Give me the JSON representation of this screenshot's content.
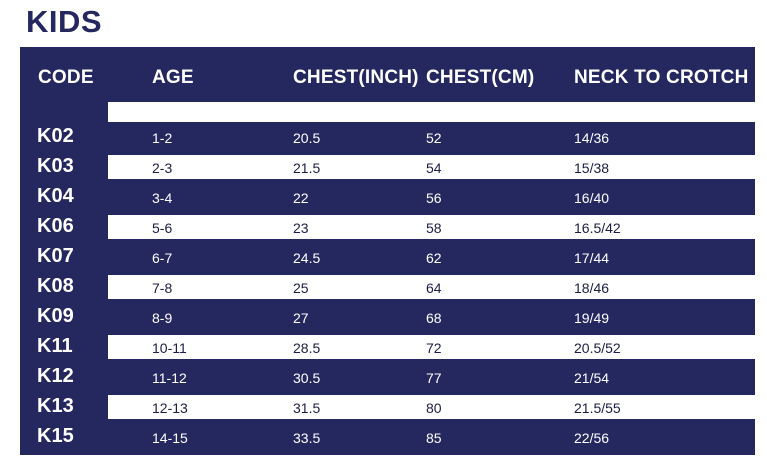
{
  "title": "KIDS",
  "headers": {
    "code": "CODE",
    "age": "AGE",
    "chest_inch": "CHEST(INCH)",
    "chest_cm": "CHEST(CM)",
    "neck_to_crotch": "NECK TO CROTCH"
  },
  "rows": [
    {
      "code": "K02",
      "age": "1-2",
      "chest_inch": "20.5",
      "chest_cm": "52",
      "neck_to_crotch": "14/36"
    },
    {
      "code": "K03",
      "age": "2-3",
      "chest_inch": "21.5",
      "chest_cm": "54",
      "neck_to_crotch": "15/38"
    },
    {
      "code": "K04",
      "age": "3-4",
      "chest_inch": "22",
      "chest_cm": "56",
      "neck_to_crotch": "16/40"
    },
    {
      "code": "K06",
      "age": "5-6",
      "chest_inch": "23",
      "chest_cm": "58",
      "neck_to_crotch": "16.5/42"
    },
    {
      "code": "K07",
      "age": "6-7",
      "chest_inch": "24.5",
      "chest_cm": "62",
      "neck_to_crotch": "17/44"
    },
    {
      "code": "K08",
      "age": "7-8",
      "chest_inch": "25",
      "chest_cm": "64",
      "neck_to_crotch": "18/46"
    },
    {
      "code": "K09",
      "age": "8-9",
      "chest_inch": "27",
      "chest_cm": "68",
      "neck_to_crotch": "19/49"
    },
    {
      "code": "K11",
      "age": "10-11",
      "chest_inch": "28.5",
      "chest_cm": "72",
      "neck_to_crotch": "20.5/52"
    },
    {
      "code": "K12",
      "age": "11-12",
      "chest_inch": "30.5",
      "chest_cm": "77",
      "neck_to_crotch": "21/54"
    },
    {
      "code": "K13",
      "age": "12-13",
      "chest_inch": "31.5",
      "chest_cm": "80",
      "neck_to_crotch": "21.5/55"
    },
    {
      "code": "K15",
      "age": "14-15",
      "chest_inch": "33.5",
      "chest_cm": "85",
      "neck_to_crotch": "22/56"
    }
  ],
  "colors": {
    "navy": "#25275f",
    "white": "#ffffff"
  }
}
